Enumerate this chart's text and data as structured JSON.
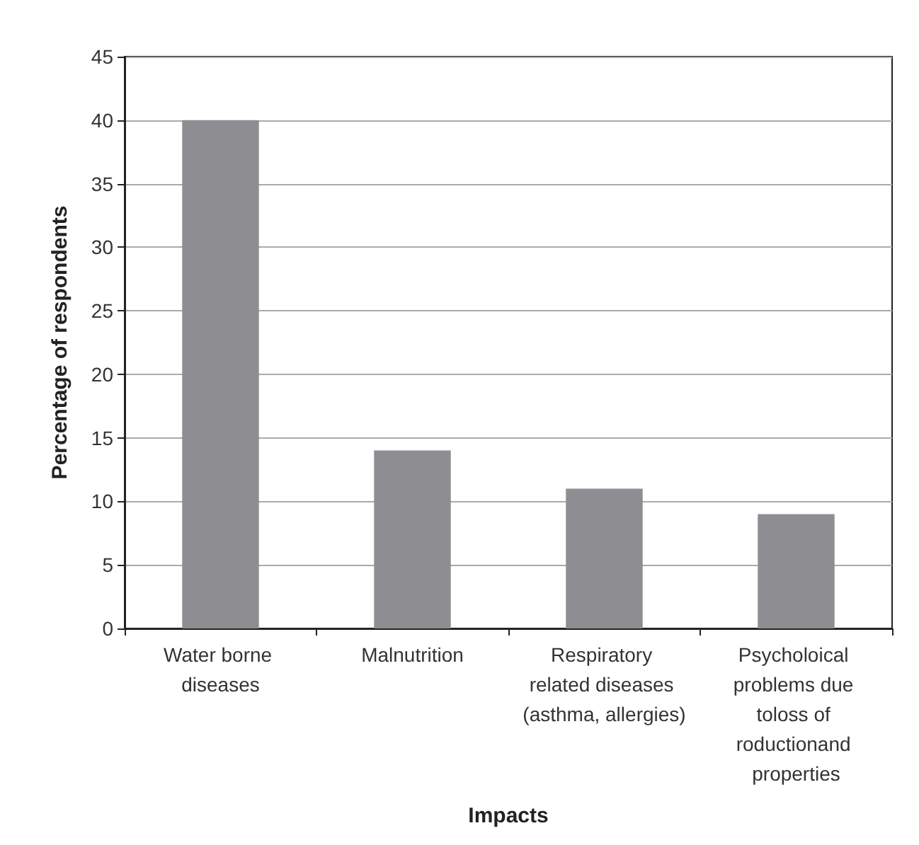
{
  "chart_data": {
    "type": "bar",
    "xlabel": "Impacts",
    "ylabel": "Percentage of respondents",
    "categories": [
      "Water borne diseases",
      "Malnutrition",
      "Respiratory related diseases (asthma, allergies)",
      "Psycholoical problems due toloss of roductionand properties"
    ],
    "values": [
      40,
      14,
      11,
      9
    ],
    "color": "#8e8e92",
    "ylim": [
      0,
      45
    ],
    "yticks": [
      0,
      5,
      10,
      15,
      20,
      25,
      30,
      35,
      40,
      45
    ],
    "grid": "y"
  }
}
